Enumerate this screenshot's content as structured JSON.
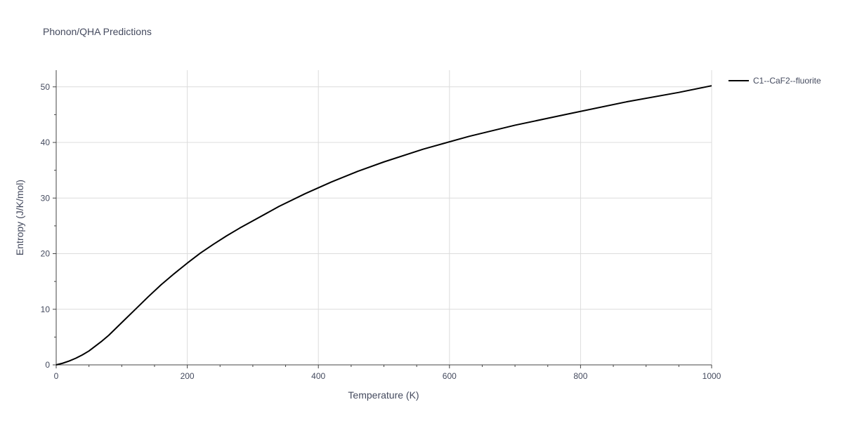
{
  "chart_data": {
    "type": "line",
    "title": "Phonon/QHA Predictions",
    "xlabel": "Temperature (K)",
    "ylabel": "Entropy (J/K/mol)",
    "xlim": [
      0,
      1000
    ],
    "ylim": [
      0,
      53
    ],
    "xticks": [
      0,
      200,
      400,
      600,
      800,
      1000
    ],
    "yticks": [
      0,
      10,
      20,
      30,
      40,
      50
    ],
    "grid": true,
    "legend_position": "top-right, outside plot",
    "series": [
      {
        "name": "C1--CaF2--fluorite",
        "color": "#000000",
        "x": [
          0,
          10,
          20,
          30,
          40,
          50,
          60,
          70,
          80,
          100,
          120,
          140,
          160,
          180,
          200,
          220,
          240,
          260,
          280,
          300,
          340,
          380,
          420,
          460,
          500,
          560,
          630,
          700,
          780,
          870,
          950,
          1000
        ],
        "y": [
          0,
          0.3,
          0.7,
          1.2,
          1.8,
          2.5,
          3.4,
          4.3,
          5.3,
          7.6,
          9.9,
          12.2,
          14.4,
          16.4,
          18.3,
          20.1,
          21.7,
          23.2,
          24.6,
          25.9,
          28.5,
          30.8,
          32.9,
          34.8,
          36.5,
          38.8,
          41.1,
          43.1,
          45.1,
          47.3,
          49.0,
          50.2
        ]
      }
    ]
  }
}
